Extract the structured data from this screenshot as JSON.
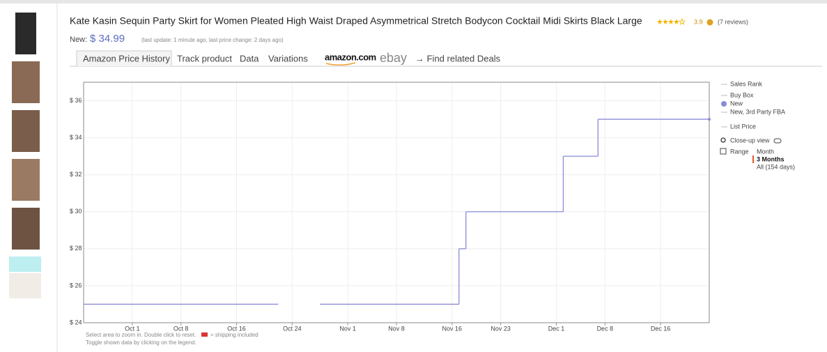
{
  "product": {
    "title": "Kate Kasin Sequin Party Skirt for Women Pleated High Waist Draped Asymmetrical Stretch Bodycon Cocktail Midi Skirts Black Large",
    "rating": "3.9",
    "reviews": "(7 reviews)",
    "new_label": "New:",
    "price": "$ 34.99",
    "update_note": "(last update: 1 minute ago,  last price change: 2 days ago)"
  },
  "tabs": [
    "Amazon Price History",
    "Track product",
    "Data",
    "Variations"
  ],
  "deals": {
    "amazon": "amazon.com",
    "ebay": "ebay",
    "find": "→  Find related Deals"
  },
  "legend_other": [
    "Sales Rank",
    "Buy Box",
    "New, 3rd Party FBA",
    "List Price"
  ],
  "closeup": "Close-up view",
  "range": {
    "label": "Range",
    "options": [
      "Month",
      "3 Months",
      "All (154 days)"
    ]
  },
  "notes": [
    "Select area to zoom in. Double click to reset.",
    "= shipping included",
    "Toggle shown data by clicking on the legend."
  ],
  "chart_data": {
    "type": "step",
    "x": [
      "Sep 24",
      "Oct 22",
      "Oct 25",
      "Oct 28",
      "Nov 17",
      "Nov 18",
      "Dec 2",
      "Dec 7",
      "Dec 23"
    ],
    "series": [
      {
        "name": "New",
        "color": "#8a8ad6",
        "values": [
          25,
          25,
          null,
          25,
          28,
          30,
          33,
          35,
          35
        ]
      }
    ],
    "xlim": [
      "Sep 24",
      "Dec 23"
    ],
    "xticks": [
      "Oct 1",
      "Oct 8",
      "Oct 16",
      "Oct 24",
      "Nov 1",
      "Nov 8",
      "Nov 16",
      "Nov 23",
      "Dec 1",
      "Dec 8",
      "Dec 16"
    ],
    "ylim": [
      24,
      37
    ],
    "yticks": [
      {
        "value": 24,
        "label": "$ 24"
      },
      {
        "value": 26,
        "label": "$ 26"
      },
      {
        "value": 28,
        "label": "$ 28"
      },
      {
        "value": 30,
        "label": "$ 30"
      },
      {
        "value": 32,
        "label": "$ 32"
      },
      {
        "value": 34,
        "label": "$ 34"
      },
      {
        "value": 36,
        "label": "$ 36"
      }
    ],
    "grid": true
  }
}
